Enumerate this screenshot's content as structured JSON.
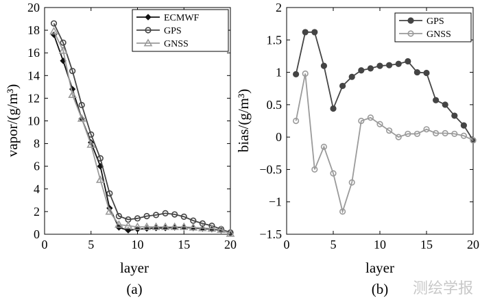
{
  "chart_data": [
    {
      "id": "a",
      "type": "line",
      "panel_label": "(a)",
      "xlabel": "layer",
      "ylabel": "vapor/(g/m³)",
      "xlim": [
        0,
        20
      ],
      "ylim": [
        0,
        20
      ],
      "xticks": [
        0,
        5,
        10,
        15,
        20
      ],
      "yticks": [
        0,
        2,
        4,
        6,
        8,
        10,
        12,
        14,
        16,
        18,
        20
      ],
      "legend_position": "top-right",
      "x": [
        1,
        2,
        3,
        4,
        5,
        6,
        7,
        8,
        9,
        10,
        11,
        12,
        13,
        14,
        15,
        16,
        17,
        18,
        19,
        20
      ],
      "series": [
        {
          "name": "ECMWF",
          "color": "#111111",
          "marker": "diamond",
          "values": [
            17.6,
            15.3,
            12.8,
            10.2,
            8.1,
            6.0,
            2.3,
            0.6,
            0.35,
            0.45,
            0.5,
            0.55,
            0.55,
            0.6,
            0.6,
            0.55,
            0.5,
            0.45,
            0.35,
            0.1
          ]
        },
        {
          "name": "GPS",
          "color": "#444444",
          "marker": "circle",
          "values": [
            18.6,
            16.9,
            14.4,
            11.4,
            8.8,
            6.7,
            3.6,
            1.6,
            1.3,
            1.4,
            1.6,
            1.7,
            1.85,
            1.75,
            1.55,
            1.2,
            0.95,
            0.75,
            0.45,
            0.15
          ]
        },
        {
          "name": "GNSS",
          "color": "#9a9a9a",
          "marker": "triangle",
          "values": [
            17.9,
            16.2,
            12.3,
            10.2,
            7.9,
            4.8,
            2.0,
            0.85,
            0.75,
            0.65,
            0.65,
            0.65,
            0.65,
            0.65,
            0.65,
            0.6,
            0.55,
            0.5,
            0.4,
            0.05
          ]
        }
      ]
    },
    {
      "id": "b",
      "type": "line",
      "panel_label": "(b)",
      "xlabel": "layer",
      "ylabel": "bias/(g/m³)",
      "xlim": [
        0,
        20
      ],
      "ylim": [
        -1.5,
        2
      ],
      "xticks": [
        0,
        5,
        10,
        15,
        20
      ],
      "yticks": [
        -1.5,
        -1,
        -0.5,
        0,
        0.5,
        1,
        1.5,
        2
      ],
      "ytick_labels": [
        "−1.5",
        "−1",
        "−0.5",
        "0",
        "0.5",
        "1",
        "1.5",
        "2"
      ],
      "legend_position": "top-right",
      "x": [
        1,
        2,
        3,
        4,
        5,
        6,
        7,
        8,
        9,
        10,
        11,
        12,
        13,
        14,
        15,
        16,
        17,
        18,
        19,
        20
      ],
      "series": [
        {
          "name": "GPS",
          "color": "#444444",
          "marker": "circle",
          "values": [
            0.97,
            1.62,
            1.62,
            1.1,
            0.44,
            0.79,
            0.93,
            1.03,
            1.06,
            1.1,
            1.11,
            1.13,
            1.17,
            1.0,
            0.99,
            0.57,
            0.5,
            0.33,
            0.18,
            -0.05
          ]
        },
        {
          "name": "GNSS",
          "color": "#9a9a9a",
          "marker": "circle",
          "values": [
            0.25,
            0.98,
            -0.5,
            -0.15,
            -0.56,
            -1.15,
            -0.7,
            0.25,
            0.3,
            0.2,
            0.1,
            0.0,
            0.05,
            0.05,
            0.12,
            0.06,
            0.06,
            0.05,
            0.02,
            -0.05
          ]
        }
      ]
    }
  ],
  "watermark": "测绘学报"
}
